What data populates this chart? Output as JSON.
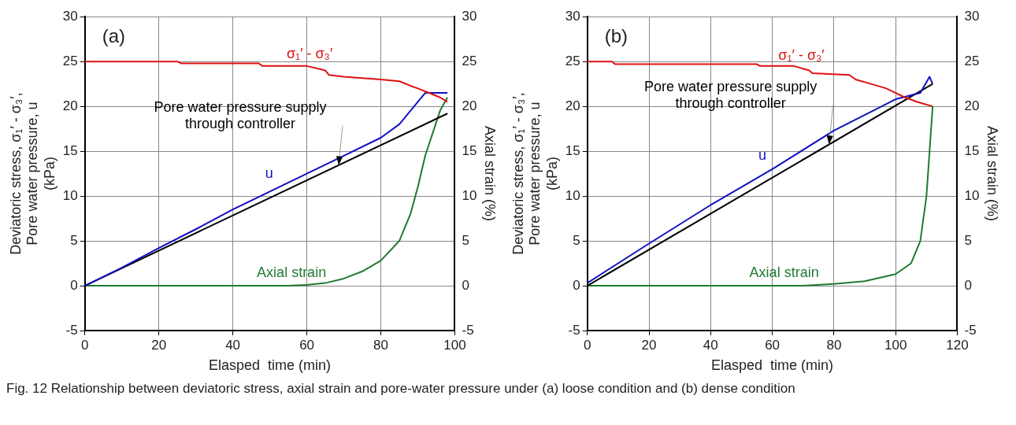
{
  "chart_data": [
    {
      "type": "line",
      "title": "(a)",
      "xlabel": "Elasped  time (min)",
      "ylabel": "Deviatoric stress, σ₁′ - σ₃′,\nPore water pressure, u\n(kPa)",
      "y2label": "Axial strain (%)",
      "xlim": [
        0,
        100
      ],
      "xticks": [
        0,
        20,
        40,
        60,
        80,
        100
      ],
      "ylim": [
        -5,
        30
      ],
      "yticks": [
        -5,
        0,
        5,
        10,
        15,
        20,
        25,
        30
      ],
      "y2lim": [
        -5,
        30
      ],
      "y2ticks": [
        -5,
        0,
        5,
        10,
        15,
        20,
        25,
        30
      ],
      "grid": true,
      "legend": false,
      "series": [
        {
          "name": "σ₁′ - σ₃′",
          "color": "#e01010",
          "x": [
            0,
            25,
            26,
            47,
            48,
            60,
            65,
            66,
            70,
            80,
            85,
            88,
            90,
            93,
            96,
            98
          ],
          "values": [
            25,
            25,
            24.8,
            24.8,
            24.5,
            24.5,
            24,
            23.5,
            23.3,
            23,
            22.8,
            22.3,
            22,
            21.5,
            21,
            20.5
          ]
        },
        {
          "name": "u",
          "color": "#1010c0",
          "x": [
            0,
            10,
            20,
            30,
            40,
            50,
            60,
            70,
            80,
            85,
            90,
            92,
            98
          ],
          "values": [
            0,
            2,
            4.2,
            6.3,
            8.5,
            10.5,
            12.5,
            14.5,
            16.5,
            18,
            20.5,
            21.5,
            21.5
          ]
        },
        {
          "name": "Pore water pressure supply\nthrough controller",
          "color": "#000000",
          "x": [
            0,
            98
          ],
          "values": [
            0,
            19.2
          ]
        },
        {
          "name": "Axial strain",
          "color": "#207a30",
          "axis": "y2",
          "x": [
            0,
            55,
            60,
            65,
            70,
            75,
            80,
            85,
            88,
            90,
            92,
            94,
            96,
            98
          ],
          "values": [
            0,
            0,
            0.1,
            0.3,
            0.8,
            1.6,
            2.8,
            5,
            8,
            11,
            14.5,
            17,
            19.5,
            21
          ]
        }
      ],
      "annotations": [
        "Fig. 12 Relationship between deviatoric stress, axial strain and pore-water pressure under (a) loose condition and (b) dense condition"
      ]
    },
    {
      "type": "line",
      "title": "(b)",
      "xlabel": "Elasped  time (min)",
      "ylabel": "Deviatoric stress, σ₁′ - σ₃′,\nPore water pressure, u\n(kPa)",
      "y2label": "Axial strain (%)",
      "xlim": [
        0,
        120
      ],
      "xticks": [
        0,
        20,
        40,
        60,
        80,
        100,
        120
      ],
      "ylim": [
        -5,
        30
      ],
      "yticks": [
        -5,
        0,
        5,
        10,
        15,
        20,
        25,
        30
      ],
      "y2lim": [
        -5,
        30
      ],
      "y2ticks": [
        -5,
        0,
        5,
        10,
        15,
        20,
        25,
        30
      ],
      "grid": true,
      "legend": false,
      "series": [
        {
          "name": "σ₁′ - σ₃′",
          "color": "#e01010",
          "x": [
            0,
            8,
            9,
            55,
            56,
            67,
            72,
            73,
            85,
            87,
            92,
            97,
            100,
            103,
            107,
            112
          ],
          "values": [
            25,
            25,
            24.7,
            24.7,
            24.5,
            24.5,
            24,
            23.7,
            23.5,
            23,
            22.5,
            22,
            21.5,
            21,
            20.5,
            20
          ]
        },
        {
          "name": "u",
          "color": "#1010c0",
          "x": [
            0,
            20,
            40,
            60,
            80,
            100,
            108,
            111,
            112
          ],
          "values": [
            0.3,
            4.7,
            9,
            13,
            17.3,
            20.8,
            21.5,
            23.3,
            22.5
          ]
        },
        {
          "name": "Pore water pressure supply\nthrough controller",
          "color": "#000000",
          "x": [
            0,
            112
          ],
          "values": [
            0,
            22.5
          ]
        },
        {
          "name": "Axial strain",
          "color": "#207a30",
          "axis": "y2",
          "x": [
            0,
            70,
            80,
            90,
            100,
            105,
            108,
            110,
            111,
            112
          ],
          "values": [
            0,
            0,
            0.2,
            0.5,
            1.3,
            2.5,
            5,
            10,
            15,
            20
          ]
        }
      ]
    }
  ]
}
